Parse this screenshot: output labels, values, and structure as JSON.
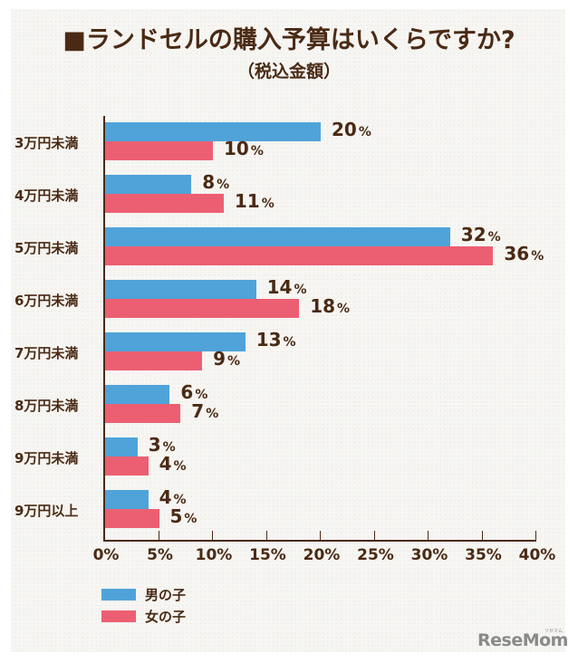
{
  "title": "■ランドセルの購入予算はいくらですか?",
  "subtitle": "（税込金額）",
  "legend": [
    {
      "label": "男の子",
      "color": "#4fa3d9"
    },
    {
      "label": "女の子",
      "color": "#ec5f72"
    }
  ],
  "logo": {
    "text": "ReseMom",
    "kana": "リセマム"
  },
  "chart_data": {
    "type": "bar",
    "orientation": "horizontal",
    "title": "■ランドセルの購入予算はいくらですか?",
    "subtitle": "（税込金額）",
    "xlabel": "",
    "ylabel": "",
    "xlim": [
      0,
      40
    ],
    "x_ticks": [
      "0%",
      "5%",
      "10%",
      "15%",
      "20%",
      "25%",
      "30%",
      "35%",
      "40%"
    ],
    "grid": false,
    "legend_position": "bottom-left",
    "categories": [
      "3万円未満",
      "4万円未満",
      "5万円未満",
      "6万円未満",
      "7万円未満",
      "8万円未満",
      "9万円未満",
      "9万円以上"
    ],
    "series": [
      {
        "name": "男の子",
        "color": "#4fa3d9",
        "values": [
          20,
          8,
          32,
          14,
          13,
          6,
          3,
          4
        ]
      },
      {
        "name": "女の子",
        "color": "#ec5f72",
        "values": [
          10,
          11,
          36,
          18,
          9,
          7,
          4,
          5
        ]
      }
    ],
    "value_suffix": "%"
  }
}
